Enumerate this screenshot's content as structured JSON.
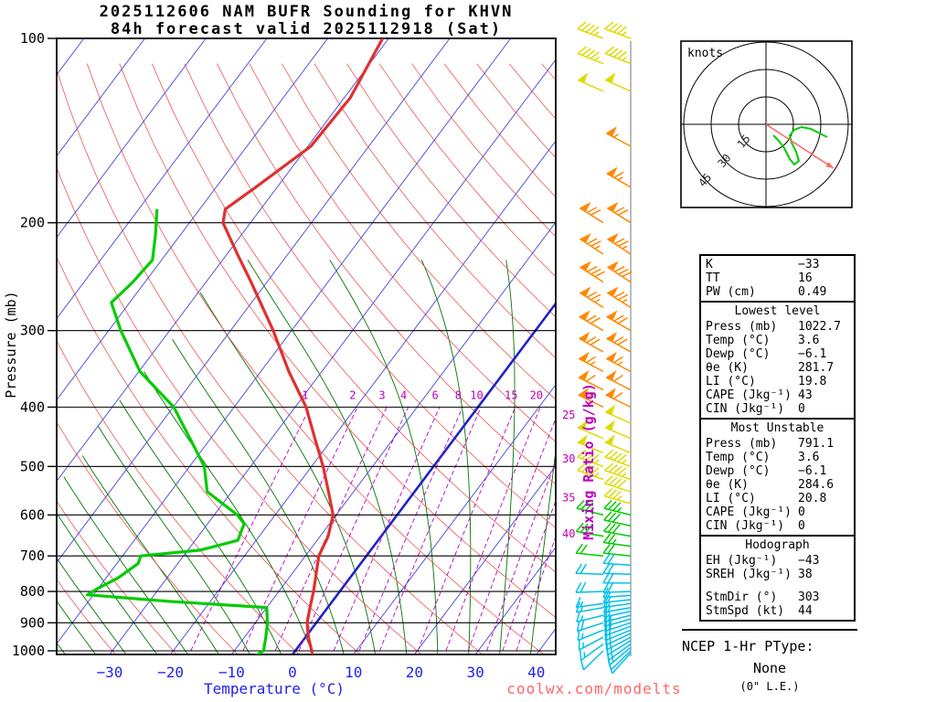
{
  "meta": {
    "watermark": "coolwx.com/modelts"
  },
  "axes": {
    "pressure_label": "Pressure (mb)",
    "temperature_label": "Temperature (°C)",
    "mixing_ratio_label": "Mixing Ratio (g/kg)",
    "pressure_ticks_mb": [
      100,
      200,
      300,
      400,
      500,
      600,
      700,
      800,
      900,
      1000
    ],
    "temperature_ticks_c": [
      -30,
      -20,
      -10,
      0,
      10,
      20,
      30,
      40
    ]
  },
  "chart_data": {
    "type": "skewt",
    "title": "2025112606 NAM BUFR Sounding for KHVN",
    "subtitle": "84h forecast valid 2025112918 (Sat)",
    "station": "KHVN",
    "model": "NAM BUFR",
    "forecast_hour": "84h",
    "pressure_range_mb": [
      100,
      1050
    ],
    "isotherm_range_c": [
      -120,
      40
    ],
    "isotherm_step_c": 10,
    "highlight_isotherm_c": 0,
    "dry_adiabat_theta_c": [
      -30,
      190
    ],
    "dry_adiabat_step_c": 10,
    "moist_adiabat_start_c": [
      -35,
      40
    ],
    "moist_adiabat_step_c": 5,
    "mixing_ratio_g_kg": [
      1,
      2,
      3,
      4,
      6,
      8,
      10,
      15,
      20,
      25,
      30,
      35,
      40
    ],
    "mixing_labels_top": [
      1,
      2,
      3,
      4,
      6,
      8,
      10,
      15,
      20
    ],
    "mixing_labels_right": [
      25,
      30,
      35,
      40
    ],
    "temperature_profile": {
      "pressure_mb": [
        1022.7,
        1000,
        950,
        925,
        900,
        850,
        800,
        750,
        700,
        650,
        600,
        550,
        500,
        450,
        400,
        350,
        300,
        250,
        225,
        200,
        190,
        175,
        150,
        125,
        100
      ],
      "temp_c": [
        3.6,
        2.7,
        0.5,
        -0.5,
        -1.5,
        -2.9,
        -4.3,
        -6.0,
        -7.8,
        -8.7,
        -10.5,
        -14.1,
        -18.1,
        -22.9,
        -28.2,
        -35.4,
        -43.0,
        -52.6,
        -58.3,
        -64.5,
        -65.8,
        -63.5,
        -59.5,
        -59.0,
        -61.0
      ]
    },
    "dewpoint_profile": {
      "pressure_mb": [
        1022.7,
        1000,
        950,
        900,
        850,
        830,
        810,
        790,
        760,
        720,
        700,
        685,
        660,
        640,
        620,
        600,
        550,
        500,
        450,
        400,
        350,
        300,
        270,
        250,
        230,
        210,
        190
      ],
      "temp_c": [
        -6.1,
        -5.2,
        -6.5,
        -8.0,
        -10.0,
        -27.0,
        -41.0,
        -40.0,
        -38.0,
        -36.5,
        -37.0,
        -28.0,
        -23.0,
        -23.5,
        -24.0,
        -26.2,
        -34.0,
        -37.6,
        -43.4,
        -49.9,
        -59.8,
        -68.0,
        -73.0,
        -72.0,
        -71.5,
        -74.0,
        -77.0
      ]
    },
    "wind_barbs_format": [
      "pressure_mb",
      "speed_kt",
      "dir_deg",
      "in_left_column"
    ],
    "wind_barbs": [
      [
        100,
        45,
        290,
        1
      ],
      [
        110,
        46,
        292,
        1
      ],
      [
        122,
        48,
        294,
        1
      ],
      [
        150,
        55,
        298,
        0
      ],
      [
        175,
        65,
        300,
        0
      ],
      [
        200,
        72,
        302,
        1
      ],
      [
        225,
        75,
        303,
        1
      ],
      [
        250,
        78,
        303,
        1
      ],
      [
        275,
        75,
        302,
        1
      ],
      [
        300,
        72,
        300,
        1
      ],
      [
        325,
        68,
        299,
        1
      ],
      [
        350,
        65,
        298,
        1
      ],
      [
        375,
        62,
        297,
        1
      ],
      [
        400,
        58,
        296,
        1
      ],
      [
        425,
        52,
        294,
        0
      ],
      [
        450,
        50,
        293,
        1
      ],
      [
        475,
        48,
        292,
        1
      ],
      [
        500,
        45,
        290,
        1
      ],
      [
        525,
        43,
        289,
        1
      ],
      [
        550,
        40,
        288,
        0
      ],
      [
        575,
        36,
        286,
        0
      ],
      [
        600,
        33,
        284,
        1
      ],
      [
        625,
        30,
        282,
        0
      ],
      [
        650,
        28,
        280,
        1
      ],
      [
        675,
        25,
        278,
        0
      ],
      [
        700,
        22,
        276,
        1
      ],
      [
        725,
        19,
        274,
        0
      ],
      [
        750,
        18,
        272,
        1
      ],
      [
        775,
        18,
        270,
        0
      ],
      [
        800,
        18,
        268,
        1
      ],
      [
        812,
        17,
        266,
        0
      ],
      [
        825,
        17,
        264,
        0
      ],
      [
        837,
        16,
        262,
        1
      ],
      [
        850,
        16,
        260,
        1
      ],
      [
        862,
        17,
        258,
        0
      ],
      [
        875,
        17,
        256,
        1
      ],
      [
        887,
        18,
        254,
        0
      ],
      [
        900,
        18,
        252,
        1
      ],
      [
        912,
        18,
        250,
        0
      ],
      [
        925,
        17,
        248,
        1
      ],
      [
        937,
        16,
        245,
        0
      ],
      [
        950,
        15,
        242,
        1
      ],
      [
        962,
        15,
        238,
        0
      ],
      [
        975,
        14,
        234,
        1
      ],
      [
        987,
        13,
        230,
        0
      ],
      [
        1000,
        12,
        226,
        1
      ],
      [
        1008,
        11,
        222,
        0
      ]
    ],
    "wind_speed_colors": [
      {
        "max_kt": 19,
        "color": "#00c0e8"
      },
      {
        "max_kt": 34,
        "color": "#00cc00"
      },
      {
        "max_kt": 54,
        "color": "#dcdc00"
      },
      {
        "max_kt": 200,
        "color": "#ff8800"
      }
    ]
  },
  "hodograph": {
    "unit_label": "knots",
    "rings_kt": [
      15,
      30,
      45
    ],
    "trace_uv_kt": [
      [
        4,
        -6
      ],
      [
        7,
        -9
      ],
      [
        10,
        -13
      ],
      [
        13,
        -19
      ],
      [
        15.5,
        -22
      ],
      [
        18,
        -20
      ],
      [
        16.5,
        -15
      ],
      [
        14,
        -10
      ],
      [
        13,
        -6
      ],
      [
        15.5,
        -3
      ],
      [
        19.5,
        -1.5
      ],
      [
        24.5,
        -2.5
      ],
      [
        29.5,
        -5
      ],
      [
        33.5,
        -7
      ]
    ],
    "storm_uv_kt": [
      36.9,
      -24
    ]
  },
  "panel": {
    "sections": [
      {
        "header": null,
        "rows": [
          [
            "K",
            "−33"
          ],
          [
            "TT",
            "16"
          ],
          [
            "PW (cm)",
            "0.49"
          ]
        ]
      },
      {
        "header": "Lowest level",
        "rows": [
          [
            "Press (mb)",
            "1022.7"
          ],
          [
            "Temp (°C)",
            "3.6"
          ],
          [
            "Dewp (°C)",
            "−6.1"
          ],
          [
            "θe (K)",
            "281.7"
          ],
          [
            "LI (°C)",
            "19.8"
          ],
          [
            "CAPE (Jkg⁻¹)",
            "43"
          ],
          [
            "CIN (Jkg⁻¹)",
            "0"
          ]
        ]
      },
      {
        "header": "Most Unstable",
        "rows": [
          [
            "Press (mb)",
            "791.1"
          ],
          [
            "Temp (°C)",
            "3.6"
          ],
          [
            "Dewp (°C)",
            "−6.1"
          ],
          [
            "θe (K)",
            "284.6"
          ],
          [
            "LI (°C)",
            "20.8"
          ],
          [
            "CAPE (Jkg⁻¹)",
            "0"
          ],
          [
            "CIN (Jkg⁻¹)",
            "0"
          ]
        ]
      },
      {
        "header": "Hodograph",
        "rows": [
          [
            "EH (Jkg⁻¹)",
            "−43"
          ],
          [
            "SREH (Jkg⁻¹)",
            "38"
          ],
          [],
          [
            "StmDir (°)",
            "303"
          ],
          [
            "StmSpd (kt)",
            "44"
          ]
        ]
      }
    ]
  },
  "ptype": {
    "heading": "NCEP 1-Hr PType:",
    "value": "None",
    "note": "(0\" L.E.)"
  }
}
